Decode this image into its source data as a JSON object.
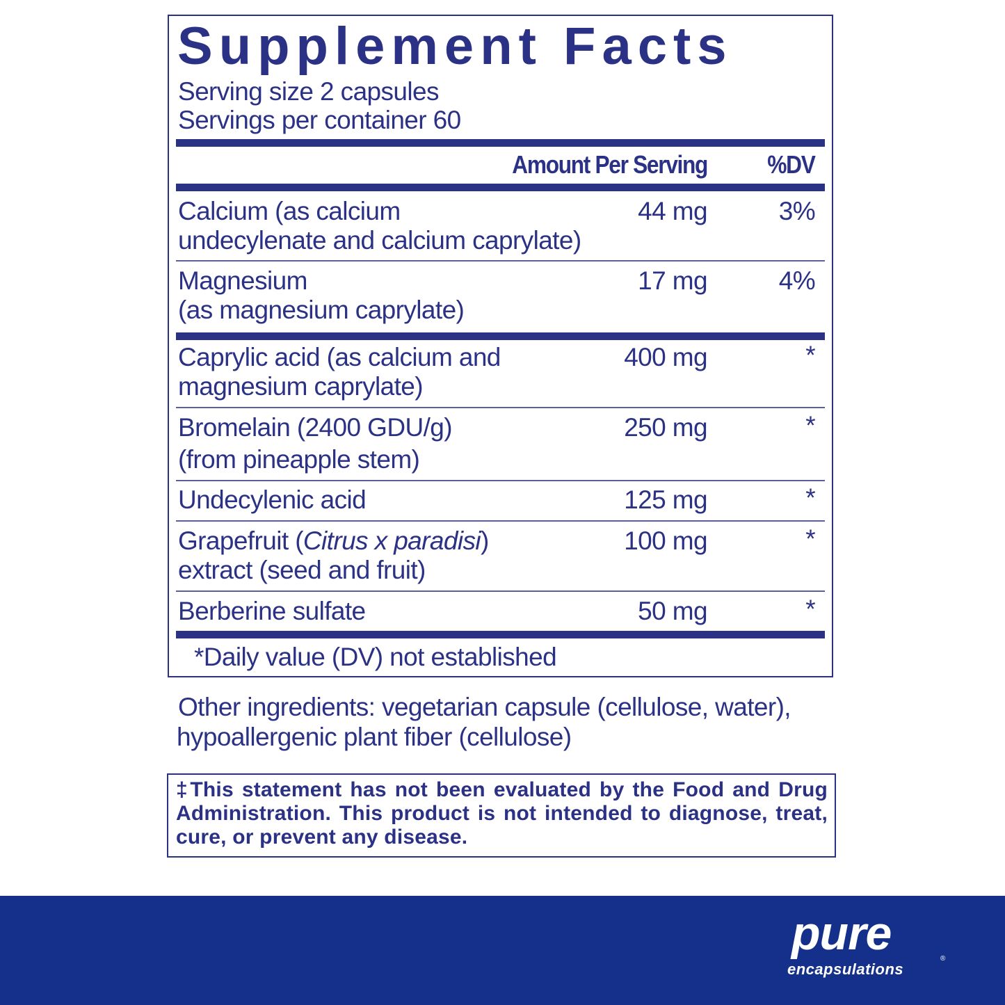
{
  "title": "Supplement Facts",
  "serving_size": "Serving size  2 capsules",
  "servings_per_container": "Servings per container  60",
  "header": {
    "amount": "Amount Per Serving",
    "dv": "%DV"
  },
  "rows": [
    {
      "name1": "Calcium (as calcium",
      "name2": "undecylenate and calcium caprylate)",
      "amount": "44 mg",
      "dv": "3%"
    },
    {
      "name1": "Magnesium",
      "name2": "(as magnesium caprylate)",
      "amount": "17 mg",
      "dv": "4%"
    },
    {
      "name1": "Caprylic acid (as calcium and",
      "name2": "magnesium caprylate)",
      "amount": "400 mg",
      "dv": "*"
    },
    {
      "name1": "Bromelain (2400 GDU/g)",
      "name2": "(from pineapple stem)",
      "amount": "250 mg",
      "dv": "*"
    },
    {
      "name1": "Undecylenic acid",
      "amount": "125 mg",
      "dv": "*"
    },
    {
      "name1a": "Grapefruit (",
      "name1i": "Citrus x paradisi",
      "name1b": ")",
      "name2": "extract (seed and fruit)",
      "amount": "100 mg",
      "dv": "*"
    },
    {
      "name1": "Berberine sulfate",
      "amount": "50 mg",
      "dv": "*"
    }
  ],
  "footnote": "*Daily value (DV) not established",
  "other_ingredients": [
    "Other ingredients: vegetarian capsule (cellulose, water),",
    "hypoallergenic plant fiber (cellulose)"
  ],
  "disclaimer": "‡This statement has not been evaluated by the Food and Drug Administration. This product is not intended to diagnose, treat, cure, or prevent any disease.",
  "logo": {
    "word": "pure",
    "sub": "encapsulations",
    "mark": "®"
  },
  "colors": {
    "text": "#2b3185",
    "footer": "#14308a"
  }
}
